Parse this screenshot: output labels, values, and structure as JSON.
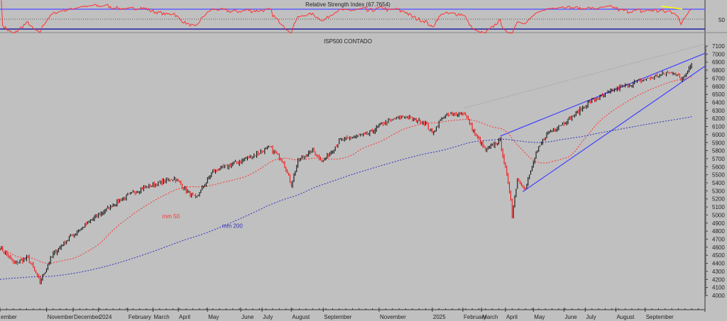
{
  "chart_data": {
    "type": "candlestick",
    "title": "ISP500 CONTADO",
    "x_unit": "trading-day index",
    "xlim": [
      0,
      530
    ],
    "ylim": [
      4000,
      7100
    ],
    "y_ticks": [
      7100,
      7000,
      6900,
      6800,
      6700,
      6600,
      6500,
      6400,
      6300,
      6200,
      6100,
      6000,
      5900,
      5800,
      5700,
      5600,
      5500,
      5400,
      5300,
      5200,
      5100,
      5000,
      4900,
      4800,
      4700,
      4600,
      4500,
      4400,
      4300,
      4200,
      4100,
      4000
    ],
    "x_ticks": [
      {
        "day": 0,
        "label": "ember"
      },
      {
        "day": 35,
        "label": "November"
      },
      {
        "day": 55,
        "label": "December"
      },
      {
        "day": 74,
        "label": "2024"
      },
      {
        "day": 96,
        "label": "February"
      },
      {
        "day": 115,
        "label": "March"
      },
      {
        "day": 134,
        "label": "April"
      },
      {
        "day": 156,
        "label": "May"
      },
      {
        "day": 181,
        "label": "June"
      },
      {
        "day": 197,
        "label": "July"
      },
      {
        "day": 219,
        "label": "August"
      },
      {
        "day": 243,
        "label": "September"
      },
      {
        "day": 285,
        "label": "November"
      },
      {
        "day": 325,
        "label": "2025"
      },
      {
        "day": 348,
        "label": "February"
      },
      {
        "day": 362,
        "label": "March"
      },
      {
        "day": 380,
        "label": "April"
      },
      {
        "day": 401,
        "label": "May"
      },
      {
        "day": 424,
        "label": "June"
      },
      {
        "day": 440,
        "label": "July"
      },
      {
        "day": 463,
        "label": "August"
      },
      {
        "day": 485,
        "label": "September"
      }
    ],
    "close_path": [
      [
        0,
        4600
      ],
      [
        11,
        4390
      ],
      [
        21,
        4470
      ],
      [
        30,
        4170
      ],
      [
        40,
        4515
      ],
      [
        53,
        4730
      ],
      [
        69,
        4940
      ],
      [
        91,
        5200
      ],
      [
        107,
        5330
      ],
      [
        131,
        5460
      ],
      [
        141,
        5290
      ],
      [
        147,
        5200
      ],
      [
        160,
        5540
      ],
      [
        181,
        5670
      ],
      [
        203,
        5840
      ],
      [
        213,
        5670
      ],
      [
        219,
        5370
      ],
      [
        224,
        5670
      ],
      [
        235,
        5800
      ],
      [
        243,
        5670
      ],
      [
        256,
        5930
      ],
      [
        277,
        6010
      ],
      [
        288,
        6140
      ],
      [
        304,
        6230
      ],
      [
        320,
        6140
      ],
      [
        325,
        6010
      ],
      [
        333,
        6230
      ],
      [
        349,
        6270
      ],
      [
        357,
        6010
      ],
      [
        365,
        5800
      ],
      [
        376,
        5930
      ],
      [
        384,
        5200
      ],
      [
        385,
        5000
      ],
      [
        389,
        5460
      ],
      [
        395,
        5330
      ],
      [
        403,
        5760
      ],
      [
        411,
        6010
      ],
      [
        427,
        6180
      ],
      [
        443,
        6400
      ],
      [
        464,
        6570
      ],
      [
        480,
        6660
      ],
      [
        496,
        6740
      ],
      [
        507,
        6780
      ],
      [
        512,
        6680
      ],
      [
        520,
        6880
      ]
    ],
    "moving_averages": [
      {
        "name": "mm 50",
        "period": 50,
        "color": "#ff3030",
        "label_day": 122,
        "label_value": 4960
      },
      {
        "name": "mm 200",
        "period": 200,
        "color": "#3030c0",
        "label_day": 167,
        "label_value": 4840
      }
    ],
    "trendlines": [
      {
        "name": "upper-channel",
        "color": "#4040ff",
        "from": [
          376,
          5980
        ],
        "to": [
          530,
          7010
        ]
      },
      {
        "name": "lower-channel",
        "color": "#4040ff",
        "from": [
          393,
          5290
        ],
        "to": [
          530,
          6850
        ]
      },
      {
        "name": "long-trend-dotted",
        "color": "#909090",
        "from": [
          349,
          6330
        ],
        "to": [
          530,
          7125
        ]
      }
    ],
    "rsi": {
      "title": "Relative Strength Index (67.7654)",
      "value": 67.7654,
      "levels": [
        70,
        50,
        30
      ],
      "level_label": "50",
      "divergence_line": {
        "color": "#ffff00",
        "from": [
          497,
          76
        ],
        "to": [
          513,
          70
        ]
      }
    },
    "colors": {
      "up": "#000000",
      "down": "#ff0000",
      "rsi": "#ff3030",
      "background": "#c0c0c0"
    }
  }
}
